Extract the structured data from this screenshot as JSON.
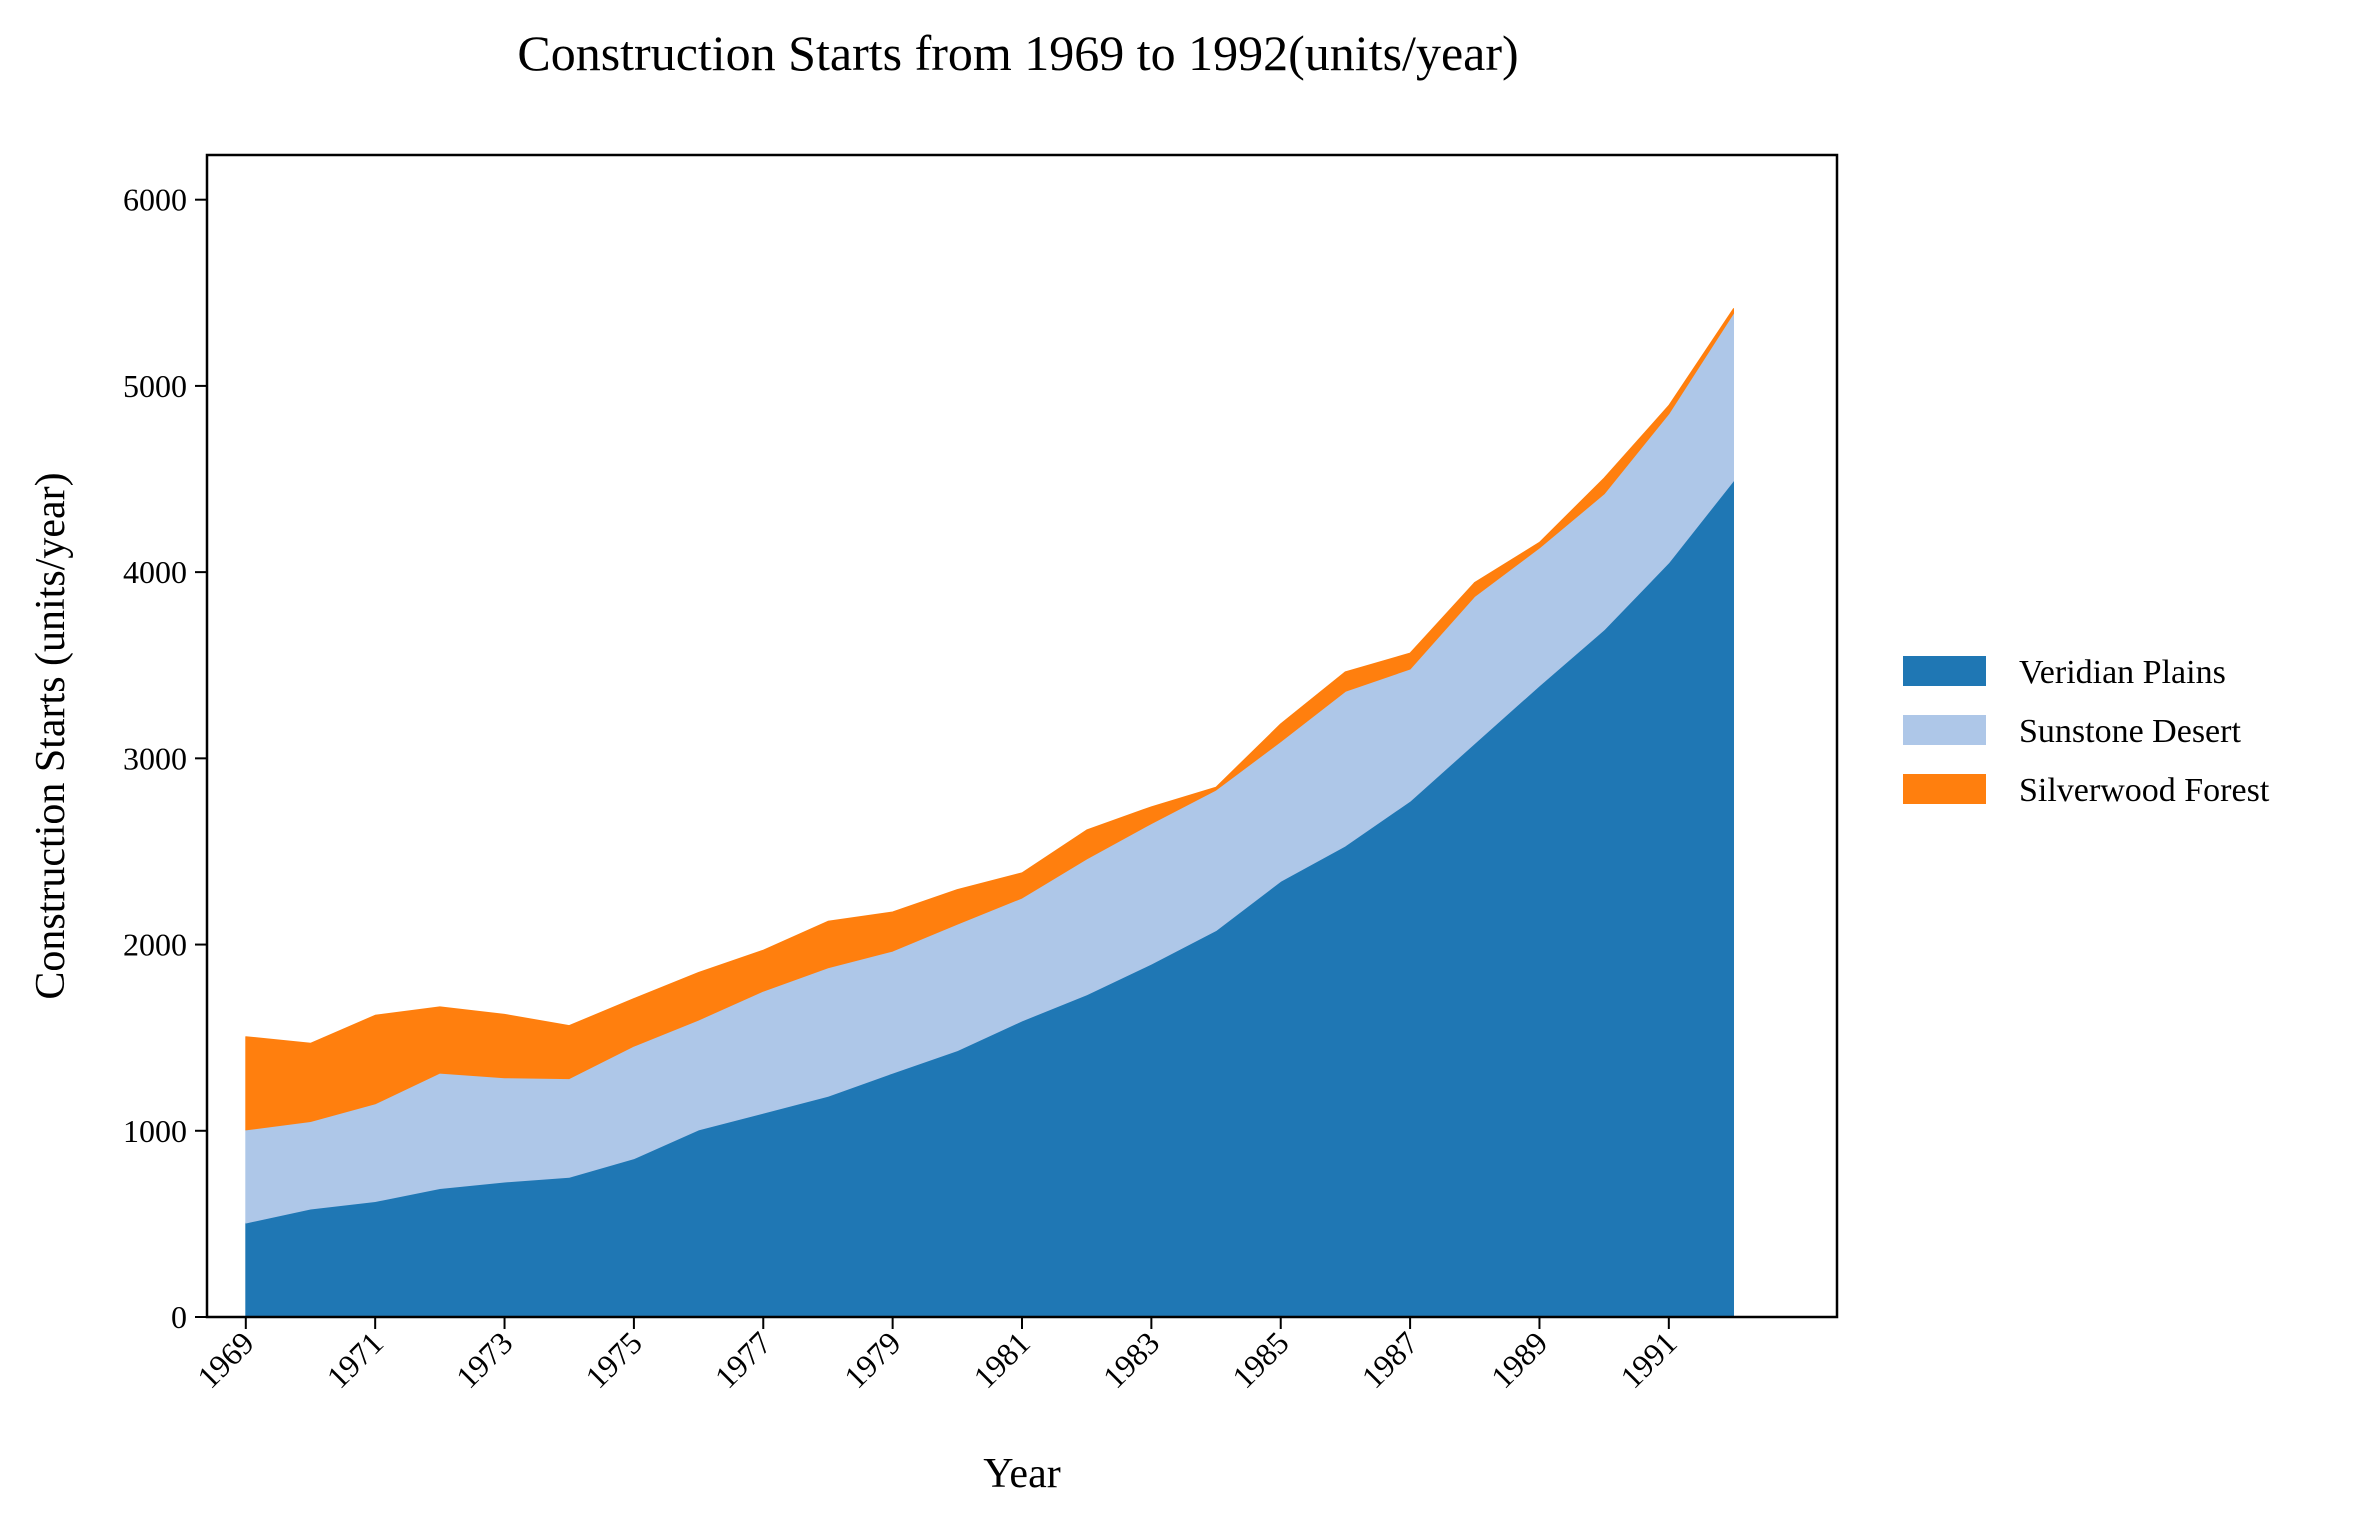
{
  "chart_data": {
    "type": "area",
    "stacked": true,
    "title": "Construction Starts from 1969 to 1992(units/year)",
    "xlabel": "Year",
    "ylabel": "Construction Starts (units/year)",
    "x": [
      1969,
      1970,
      1971,
      1972,
      1973,
      1974,
      1975,
      1976,
      1977,
      1978,
      1979,
      1980,
      1981,
      1982,
      1983,
      1984,
      1985,
      1986,
      1987,
      1988,
      1989,
      1990,
      1991,
      1992
    ],
    "x_tick_labels": [
      "1969",
      "1971",
      "1973",
      "1975",
      "1977",
      "1979",
      "1981",
      "1983",
      "1985",
      "1987",
      "1989",
      "1991"
    ],
    "x_tick_values": [
      1969,
      1971,
      1973,
      1975,
      1977,
      1979,
      1981,
      1983,
      1985,
      1987,
      1989,
      1991
    ],
    "xlim": [
      1968.4,
      1993.6
    ],
    "ylim": [
      0,
      6240
    ],
    "y_ticks": [
      0,
      1000,
      2000,
      3000,
      4000,
      5000,
      6000
    ],
    "y_tick_labels": [
      "0",
      "1000",
      "2000",
      "3000",
      "4000",
      "5000",
      "6000"
    ],
    "grid": false,
    "legend_position": "right",
    "series": [
      {
        "name": "Veridian Plains",
        "color": "#1f77b4",
        "values": [
          505,
          580,
          620,
          690,
          725,
          750,
          850,
          1005,
          1095,
          1185,
          1310,
          1430,
          1590,
          1730,
          1895,
          2075,
          2340,
          2530,
          2770,
          3080,
          3390,
          3690,
          4050,
          4490
        ]
      },
      {
        "name": "Sunstone Desert",
        "color": "#aec7e8",
        "values": [
          500,
          470,
          525,
          620,
          560,
          530,
          605,
          590,
          655,
          690,
          655,
          680,
          660,
          730,
          755,
          755,
          750,
          830,
          710,
          790,
          740,
          730,
          800,
          900
        ]
      },
      {
        "name": "Silverwood Forest",
        "color": "#ff7f0e",
        "values": [
          500,
          420,
          475,
          355,
          340,
          285,
          255,
          255,
          220,
          250,
          210,
          185,
          135,
          155,
          90,
          15,
          95,
          105,
          85,
          75,
          30,
          85,
          45,
          25
        ]
      }
    ]
  }
}
